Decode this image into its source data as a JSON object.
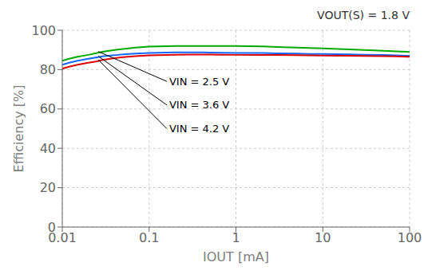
{
  "chart_data": {
    "type": "line",
    "title": "VOUT(S) = 1.8 V",
    "x_label": "IOUT [mA]",
    "y_label": "Efficiency [%]",
    "log": "x",
    "grid": true,
    "xlim": [
      0.01,
      100
    ],
    "xticks": [
      0.01,
      0.1,
      1,
      10,
      100
    ],
    "ylim": [
      0,
      100
    ],
    "yticks": [
      0,
      20,
      40,
      60,
      80,
      100
    ],
    "x": [
      0.01,
      0.012,
      0.015,
      0.02,
      0.025,
      0.03,
      0.04,
      0.05,
      0.07,
      0.1,
      0.2,
      0.3,
      0.5,
      0.7,
      1.0,
      2.0,
      3.0,
      5.0,
      7.0,
      10,
      20,
      30,
      50,
      70,
      100
    ],
    "series": [
      {
        "name": "VIN = 2.5 V",
        "color": "#00aa00",
        "values": [
          84.5,
          85.5,
          86.5,
          87.5,
          88.5,
          89.2,
          90.0,
          90.5,
          91.2,
          91.7,
          92.0,
          92.0,
          92.0,
          92.0,
          92.0,
          91.8,
          91.5,
          91.2,
          91.0,
          90.8,
          90.3,
          90.0,
          89.6,
          89.3,
          89.0
        ]
      },
      {
        "name": "VIN = 3.6 V",
        "color": "#1166ff",
        "values": [
          82.5,
          83.5,
          84.5,
          85.5,
          86.2,
          86.8,
          87.3,
          87.8,
          88.2,
          88.5,
          88.8,
          88.8,
          88.7,
          88.6,
          88.5,
          88.5,
          88.3,
          88.2,
          88.0,
          88.0,
          87.8,
          87.6,
          87.4,
          87.2,
          87.0
        ]
      },
      {
        "name": "VIN = 4.2 V",
        "color": "#dd0000",
        "values": [
          80.5,
          81.5,
          82.5,
          83.5,
          84.2,
          85.0,
          85.8,
          86.3,
          86.8,
          87.2,
          87.6,
          87.7,
          87.7,
          87.6,
          87.5,
          87.5,
          87.4,
          87.3,
          87.2,
          87.1,
          87.0,
          86.9,
          86.8,
          86.7,
          86.5
        ]
      }
    ],
    "annotations": [
      {
        "text": "VIN = 2.5 V",
        "x_text": 0.16,
        "y_text": 74.0,
        "x_arr": 0.026,
        "y_arr": 89.2
      },
      {
        "text": "VIN = 3.6 V",
        "x_text": 0.16,
        "y_text": 62.0,
        "x_arr": 0.026,
        "y_arr": 86.8
      },
      {
        "text": "VIN = 4.2 V",
        "x_text": 0.16,
        "y_text": 50.0,
        "x_arr": 0.026,
        "y_arr": 85.0
      }
    ]
  }
}
